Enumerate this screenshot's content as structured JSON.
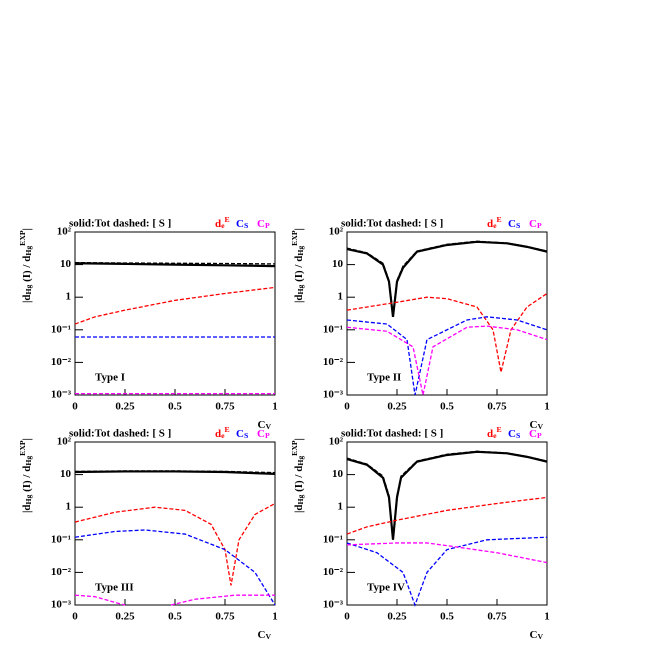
{
  "chart_data": [
    {
      "type": "line",
      "log_y": true,
      "legend_text": "solid:Tot    dashed: [ S ]",
      "panel_label": "Type I",
      "x_label": "C_{V}",
      "y_label": "|d_{Hg} (I) / d_{Hg}^{EXP}|",
      "xlim": [
        0,
        1
      ],
      "xticks": [
        0,
        0.25,
        0.5,
        0.75,
        1
      ],
      "ylim": [
        0.001,
        100
      ],
      "yticks": [
        {
          "value": 0.001,
          "label": "10⁻³"
        },
        {
          "value": 0.01,
          "label": "10⁻²"
        },
        {
          "value": 0.1,
          "label": "10⁻¹"
        },
        {
          "value": 1,
          "label": "1"
        },
        {
          "value": 10,
          "label": "10"
        },
        {
          "value": 100,
          "label": "10²"
        }
      ],
      "series": [
        {
          "color": "#000000",
          "dashed": false,
          "x": [
            0,
            0.25,
            0.5,
            0.75,
            1
          ],
          "values": [
            11,
            10.5,
            10,
            9.5,
            9
          ]
        },
        {
          "color": "#000000",
          "dashed": true,
          "x": [
            0,
            0.25,
            0.5,
            0.75,
            1
          ],
          "values": [
            11.5,
            11.2,
            11,
            10.8,
            10.5
          ]
        },
        {
          "name": "d_{e}^{E}",
          "color": "#ff0000",
          "dashed": true,
          "x": [
            0,
            0.1,
            0.25,
            0.5,
            0.75,
            1
          ],
          "values": [
            0.15,
            0.25,
            0.4,
            0.8,
            1.3,
            2
          ]
        },
        {
          "name": "C_{S}",
          "color": "#0000ff",
          "dashed": true,
          "x": [
            0,
            1
          ],
          "values": [
            0.06,
            0.06
          ]
        },
        {
          "name": "C_{P}",
          "color": "#ff00ff",
          "dashed": true,
          "x": [
            0,
            1
          ],
          "values": [
            0.0011,
            0.0011
          ]
        }
      ]
    },
    {
      "type": "line",
      "log_y": true,
      "legend_text": "solid:Tot    dashed: [ S ]",
      "panel_label": "Type II",
      "x_label": "C_{V}",
      "y_label": "|d_{Hg} (I) / d_{Hg}^{EXP}|",
      "xlim": [
        0,
        1
      ],
      "xticks": [
        0,
        0.25,
        0.5,
        0.75,
        1
      ],
      "ylim": [
        0.001,
        100
      ],
      "yticks": [
        {
          "value": 0.001,
          "label": "10⁻³"
        },
        {
          "value": 0.01,
          "label": "10⁻²"
        },
        {
          "value": 0.1,
          "label": "10⁻¹"
        },
        {
          "value": 1,
          "label": "1"
        },
        {
          "value": 10,
          "label": "10"
        },
        {
          "value": 100,
          "label": "10²"
        }
      ],
      "series": [
        {
          "color": "#000000",
          "dashed": false,
          "x": [
            0,
            0.1,
            0.18,
            0.21,
            0.23,
            0.25,
            0.28,
            0.35,
            0.5,
            0.65,
            0.8,
            0.9,
            1
          ],
          "values": [
            30,
            22,
            10,
            3,
            0.25,
            3,
            8,
            25,
            40,
            50,
            45,
            35,
            25
          ]
        },
        {
          "color": "#000000",
          "dashed": true,
          "x": [
            0,
            0.1,
            0.18,
            0.21,
            0.23,
            0.25,
            0.28,
            0.35,
            0.5,
            0.65,
            0.8,
            0.9,
            1
          ],
          "values": [
            32,
            23,
            11,
            3.3,
            0.3,
            3.3,
            9,
            26,
            42,
            52,
            46,
            36,
            26
          ]
        },
        {
          "name": "d_{e}^{E}",
          "color": "#ff0000",
          "dashed": true,
          "x": [
            0,
            0.25,
            0.4,
            0.5,
            0.65,
            0.73,
            0.77,
            0.82,
            0.9,
            1
          ],
          "values": [
            0.4,
            0.7,
            1,
            0.9,
            0.5,
            0.1,
            0.005,
            0.1,
            0.5,
            1.3
          ]
        },
        {
          "name": "C_{S}",
          "color": "#0000ff",
          "dashed": true,
          "x": [
            0,
            0.2,
            0.3,
            0.34,
            0.4,
            0.6,
            0.7,
            0.85,
            1
          ],
          "values": [
            0.2,
            0.15,
            0.05,
            0.001,
            0.05,
            0.2,
            0.25,
            0.2,
            0.1
          ]
        },
        {
          "name": "C_{P}",
          "color": "#ff00ff",
          "dashed": true,
          "x": [
            0,
            0.2,
            0.33,
            0.38,
            0.43,
            0.6,
            0.7,
            0.85,
            1
          ],
          "values": [
            0.12,
            0.09,
            0.03,
            0.001,
            0.03,
            0.12,
            0.13,
            0.1,
            0.05
          ]
        }
      ]
    },
    {
      "type": "line",
      "log_y": true,
      "legend_text": "solid:Tot    dashed: [ S ]",
      "panel_label": "Type III",
      "x_label": "C_{V}",
      "y_label": "|d_{Hg} (I) / d_{Hg}^{EXP}|",
      "xlim": [
        0,
        1
      ],
      "xticks": [
        0,
        0.25,
        0.5,
        0.75,
        1
      ],
      "ylim": [
        0.001,
        100
      ],
      "yticks": [
        {
          "value": 0.001,
          "label": "10⁻³"
        },
        {
          "value": 0.01,
          "label": "10⁻²"
        },
        {
          "value": 0.1,
          "label": "10⁻¹"
        },
        {
          "value": 1,
          "label": "1"
        },
        {
          "value": 10,
          "label": "10"
        },
        {
          "value": 100,
          "label": "10²"
        }
      ],
      "series": [
        {
          "color": "#000000",
          "dashed": false,
          "x": [
            0,
            0.25,
            0.5,
            0.75,
            1
          ],
          "values": [
            12,
            12.5,
            12.5,
            12,
            10.5
          ]
        },
        {
          "color": "#000000",
          "dashed": true,
          "x": [
            0,
            0.25,
            0.5,
            0.75,
            1
          ],
          "values": [
            12.5,
            13,
            13,
            12.5,
            11.5
          ]
        },
        {
          "name": "d_{e}^{E}",
          "color": "#ff0000",
          "dashed": true,
          "x": [
            0,
            0.2,
            0.4,
            0.55,
            0.68,
            0.75,
            0.78,
            0.82,
            0.9,
            1
          ],
          "values": [
            0.35,
            0.7,
            1,
            0.8,
            0.3,
            0.05,
            0.004,
            0.1,
            0.6,
            1.3
          ]
        },
        {
          "name": "C_{S}",
          "color": "#0000ff",
          "dashed": true,
          "x": [
            0,
            0.2,
            0.35,
            0.55,
            0.75,
            0.9,
            1
          ],
          "values": [
            0.12,
            0.18,
            0.2,
            0.15,
            0.05,
            0.01,
            0.001
          ]
        },
        {
          "name": "C_{P}",
          "color": "#ff00ff",
          "dashed": true,
          "x": [
            0,
            0.1,
            0.2,
            0.25,
            0.35,
            0.48,
            0.6,
            0.8,
            1
          ],
          "values": [
            0.002,
            0.0018,
            0.0012,
            0.001,
            null,
            0.001,
            0.0015,
            0.002,
            0.002
          ]
        }
      ]
    },
    {
      "type": "line",
      "log_y": true,
      "legend_text": "solid:Tot    dashed: [ S ]",
      "panel_label": "Type IV",
      "x_label": "C_{V}",
      "y_label": "|d_{Hg} (I) / d_{Hg}^{EXP}|",
      "xlim": [
        0,
        1
      ],
      "xticks": [
        0,
        0.25,
        0.5,
        0.75,
        1
      ],
      "ylim": [
        0.001,
        100
      ],
      "yticks": [
        {
          "value": 0.001,
          "label": "10⁻³"
        },
        {
          "value": 0.01,
          "label": "10⁻²"
        },
        {
          "value": 0.1,
          "label": "10⁻¹"
        },
        {
          "value": 1,
          "label": "1"
        },
        {
          "value": 10,
          "label": "10"
        },
        {
          "value": 100,
          "label": "10²"
        }
      ],
      "series": [
        {
          "color": "#000000",
          "dashed": false,
          "x": [
            0,
            0.1,
            0.18,
            0.21,
            0.23,
            0.25,
            0.27,
            0.35,
            0.5,
            0.65,
            0.8,
            0.9,
            1
          ],
          "values": [
            30,
            20,
            8,
            2,
            0.1,
            2,
            8,
            25,
            40,
            50,
            45,
            35,
            25
          ]
        },
        {
          "color": "#000000",
          "dashed": true,
          "x": [
            0,
            0.1,
            0.18,
            0.21,
            0.23,
            0.25,
            0.27,
            0.35,
            0.5,
            0.65,
            0.8,
            0.9,
            1
          ],
          "values": [
            32,
            21,
            9,
            2.3,
            0.12,
            2.3,
            9,
            26,
            42,
            52,
            46,
            36,
            26
          ]
        },
        {
          "name": "d_{e}^{E}",
          "color": "#ff0000",
          "dashed": true,
          "x": [
            0,
            0.1,
            0.25,
            0.5,
            0.75,
            1
          ],
          "values": [
            0.15,
            0.25,
            0.4,
            0.8,
            1.3,
            2
          ]
        },
        {
          "name": "C_{S}",
          "color": "#0000ff",
          "dashed": true,
          "x": [
            0,
            0.15,
            0.28,
            0.34,
            0.4,
            0.5,
            0.7,
            1
          ],
          "values": [
            0.08,
            0.04,
            0.01,
            0.001,
            0.01,
            0.05,
            0.1,
            0.12
          ]
        },
        {
          "name": "C_{P}",
          "color": "#ff00ff",
          "dashed": true,
          "x": [
            0,
            0.25,
            0.4,
            0.55,
            0.75,
            1
          ],
          "values": [
            0.07,
            0.08,
            0.08,
            0.06,
            0.04,
            0.02
          ]
        }
      ]
    }
  ]
}
